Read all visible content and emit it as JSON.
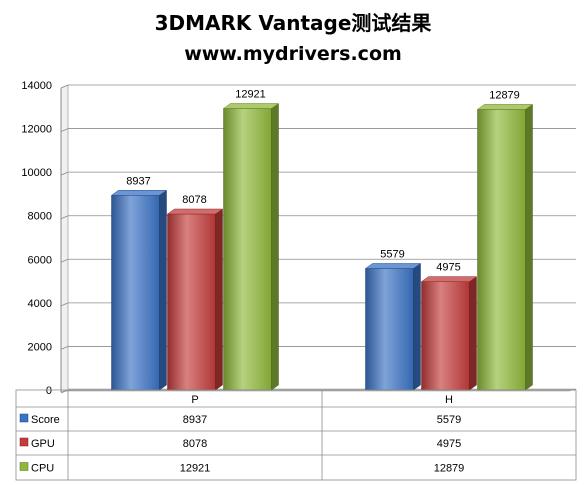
{
  "title": "3DMARK Vantage测试结果",
  "subtitle": "www.mydrivers.com",
  "chart_data": {
    "type": "bar",
    "title": "3DMARK Vantage测试结果",
    "subtitle": "www.mydrivers.com",
    "categories": [
      "P",
      "H"
    ],
    "series": [
      {
        "name": "Score",
        "values": [
          8937,
          5579
        ],
        "color": "#3a72c4"
      },
      {
        "name": "GPU",
        "values": [
          8078,
          4975
        ],
        "color": "#c43c3c"
      },
      {
        "name": "CPU",
        "values": [
          12921,
          12879
        ],
        "color": "#8fb83a"
      }
    ],
    "ylim": [
      0,
      14000
    ],
    "y_ticks": [
      0,
      2000,
      4000,
      6000,
      8000,
      10000,
      12000,
      14000
    ],
    "grid": true,
    "legend": "data-table",
    "data_labels": true,
    "style": "3d-bars"
  }
}
